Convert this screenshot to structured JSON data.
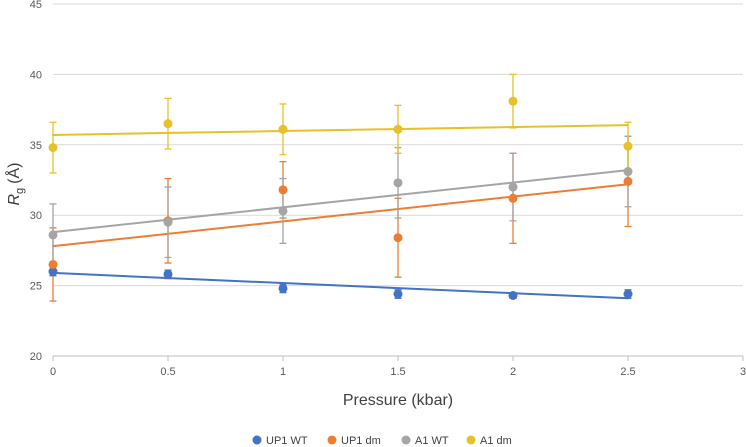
{
  "chart_data": {
    "type": "scatter",
    "title": "",
    "xlabel": "Pressure (kbar)",
    "ylabel_main": "R",
    "ylabel_sub": "g",
    "ylabel_unit": "(Å)",
    "xlim": [
      0,
      3
    ],
    "ylim": [
      20,
      45
    ],
    "xticks": [
      "0",
      "0.5",
      "1",
      "1.5",
      "2",
      "2.5",
      "3"
    ],
    "yticks": [
      "20",
      "25",
      "30",
      "35",
      "40",
      "45"
    ],
    "grid": "horizontal",
    "legend_position": "bottom",
    "x": [
      0,
      0.5,
      1,
      1.5,
      2,
      2.5
    ],
    "series": [
      {
        "name": "UP1 WT",
        "color": "#4472C4",
        "values": [
          26.0,
          25.8,
          24.8,
          24.4,
          24.3,
          24.4
        ],
        "errors": [
          0.3,
          0.3,
          0.3,
          0.3,
          0.2,
          0.3
        ],
        "trend": [
          25.9,
          24.1
        ]
      },
      {
        "name": "UP1 dm",
        "color": "#ED7D31",
        "values": [
          26.5,
          29.6,
          31.8,
          28.4,
          31.2,
          32.4
        ],
        "errors": [
          2.6,
          3.0,
          2.0,
          2.8,
          3.2,
          3.2
        ],
        "trend": [
          27.8,
          32.2
        ]
      },
      {
        "name": "A1 WT",
        "color": "#A5A5A5",
        "values": [
          28.6,
          29.5,
          30.3,
          32.3,
          32.0,
          33.1
        ],
        "errors": [
          2.2,
          2.5,
          2.3,
          2.5,
          2.4,
          2.5
        ],
        "trend": [
          28.8,
          33.2
        ]
      },
      {
        "name": "A1 dm",
        "color": "#E6C128",
        "values": [
          34.8,
          36.5,
          36.1,
          36.1,
          38.1,
          34.9
        ],
        "errors": [
          1.8,
          1.8,
          1.8,
          1.7,
          1.9,
          1.7
        ],
        "trend": [
          35.7,
          36.4
        ]
      }
    ]
  }
}
